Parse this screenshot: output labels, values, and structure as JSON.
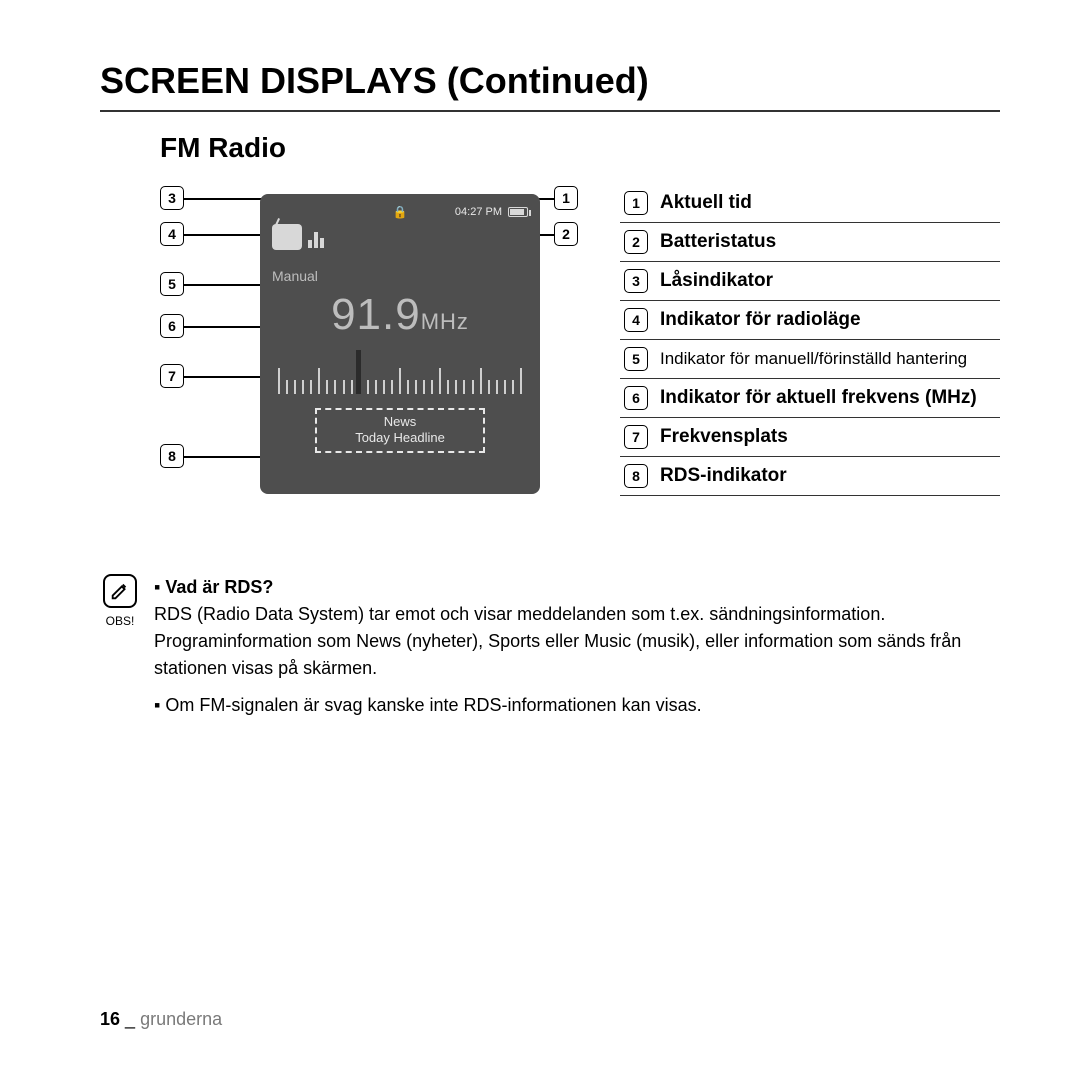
{
  "page_title": "SCREEN DISPLAYS (Continued)",
  "section_title": "FM Radio",
  "device": {
    "time": "04:27 PM",
    "mode_label": "Manual",
    "frequency_value": "91.9",
    "frequency_unit": "MHz",
    "rds_line1": "News",
    "rds_line2": "Today Headline"
  },
  "legend": [
    {
      "n": "1",
      "label": "Aktuell tid",
      "bold": true
    },
    {
      "n": "2",
      "label": "Batteristatus",
      "bold": true
    },
    {
      "n": "3",
      "label": "Låsindikator",
      "bold": true
    },
    {
      "n": "4",
      "label": "Indikator för radioläge",
      "bold": true
    },
    {
      "n": "5",
      "label": "Indikator för manuell/förinställd hantering",
      "bold": false
    },
    {
      "n": "6",
      "label": "Indikator för aktuell frekvens (MHz)",
      "bold": true
    },
    {
      "n": "7",
      "label": "Frekvensplats",
      "bold": true
    },
    {
      "n": "8",
      "label": "RDS-indikator",
      "bold": true
    }
  ],
  "callouts_left": [
    "3",
    "4",
    "5",
    "6",
    "7",
    "8"
  ],
  "callouts_right": [
    "1",
    "2"
  ],
  "note": {
    "obs_label": "OBS!",
    "heading": "Vad är RDS?",
    "para1": "RDS (Radio Data System) tar emot och visar meddelanden som t.ex. sändningsinformation. Programinformation som News (nyheter), Sports eller Music (musik), eller information som sänds från stationen visas på skärmen.",
    "para2": "Om FM-signalen är svag kanske inte RDS-informationen kan visas."
  },
  "footer": {
    "page_number": "16",
    "separator": "_",
    "section": "grunderna"
  },
  "colors": {
    "device_bg": "#4e4e4e",
    "device_text": "#e8e8e8",
    "dim_text": "#bdbdbd",
    "rule": "#333333"
  }
}
